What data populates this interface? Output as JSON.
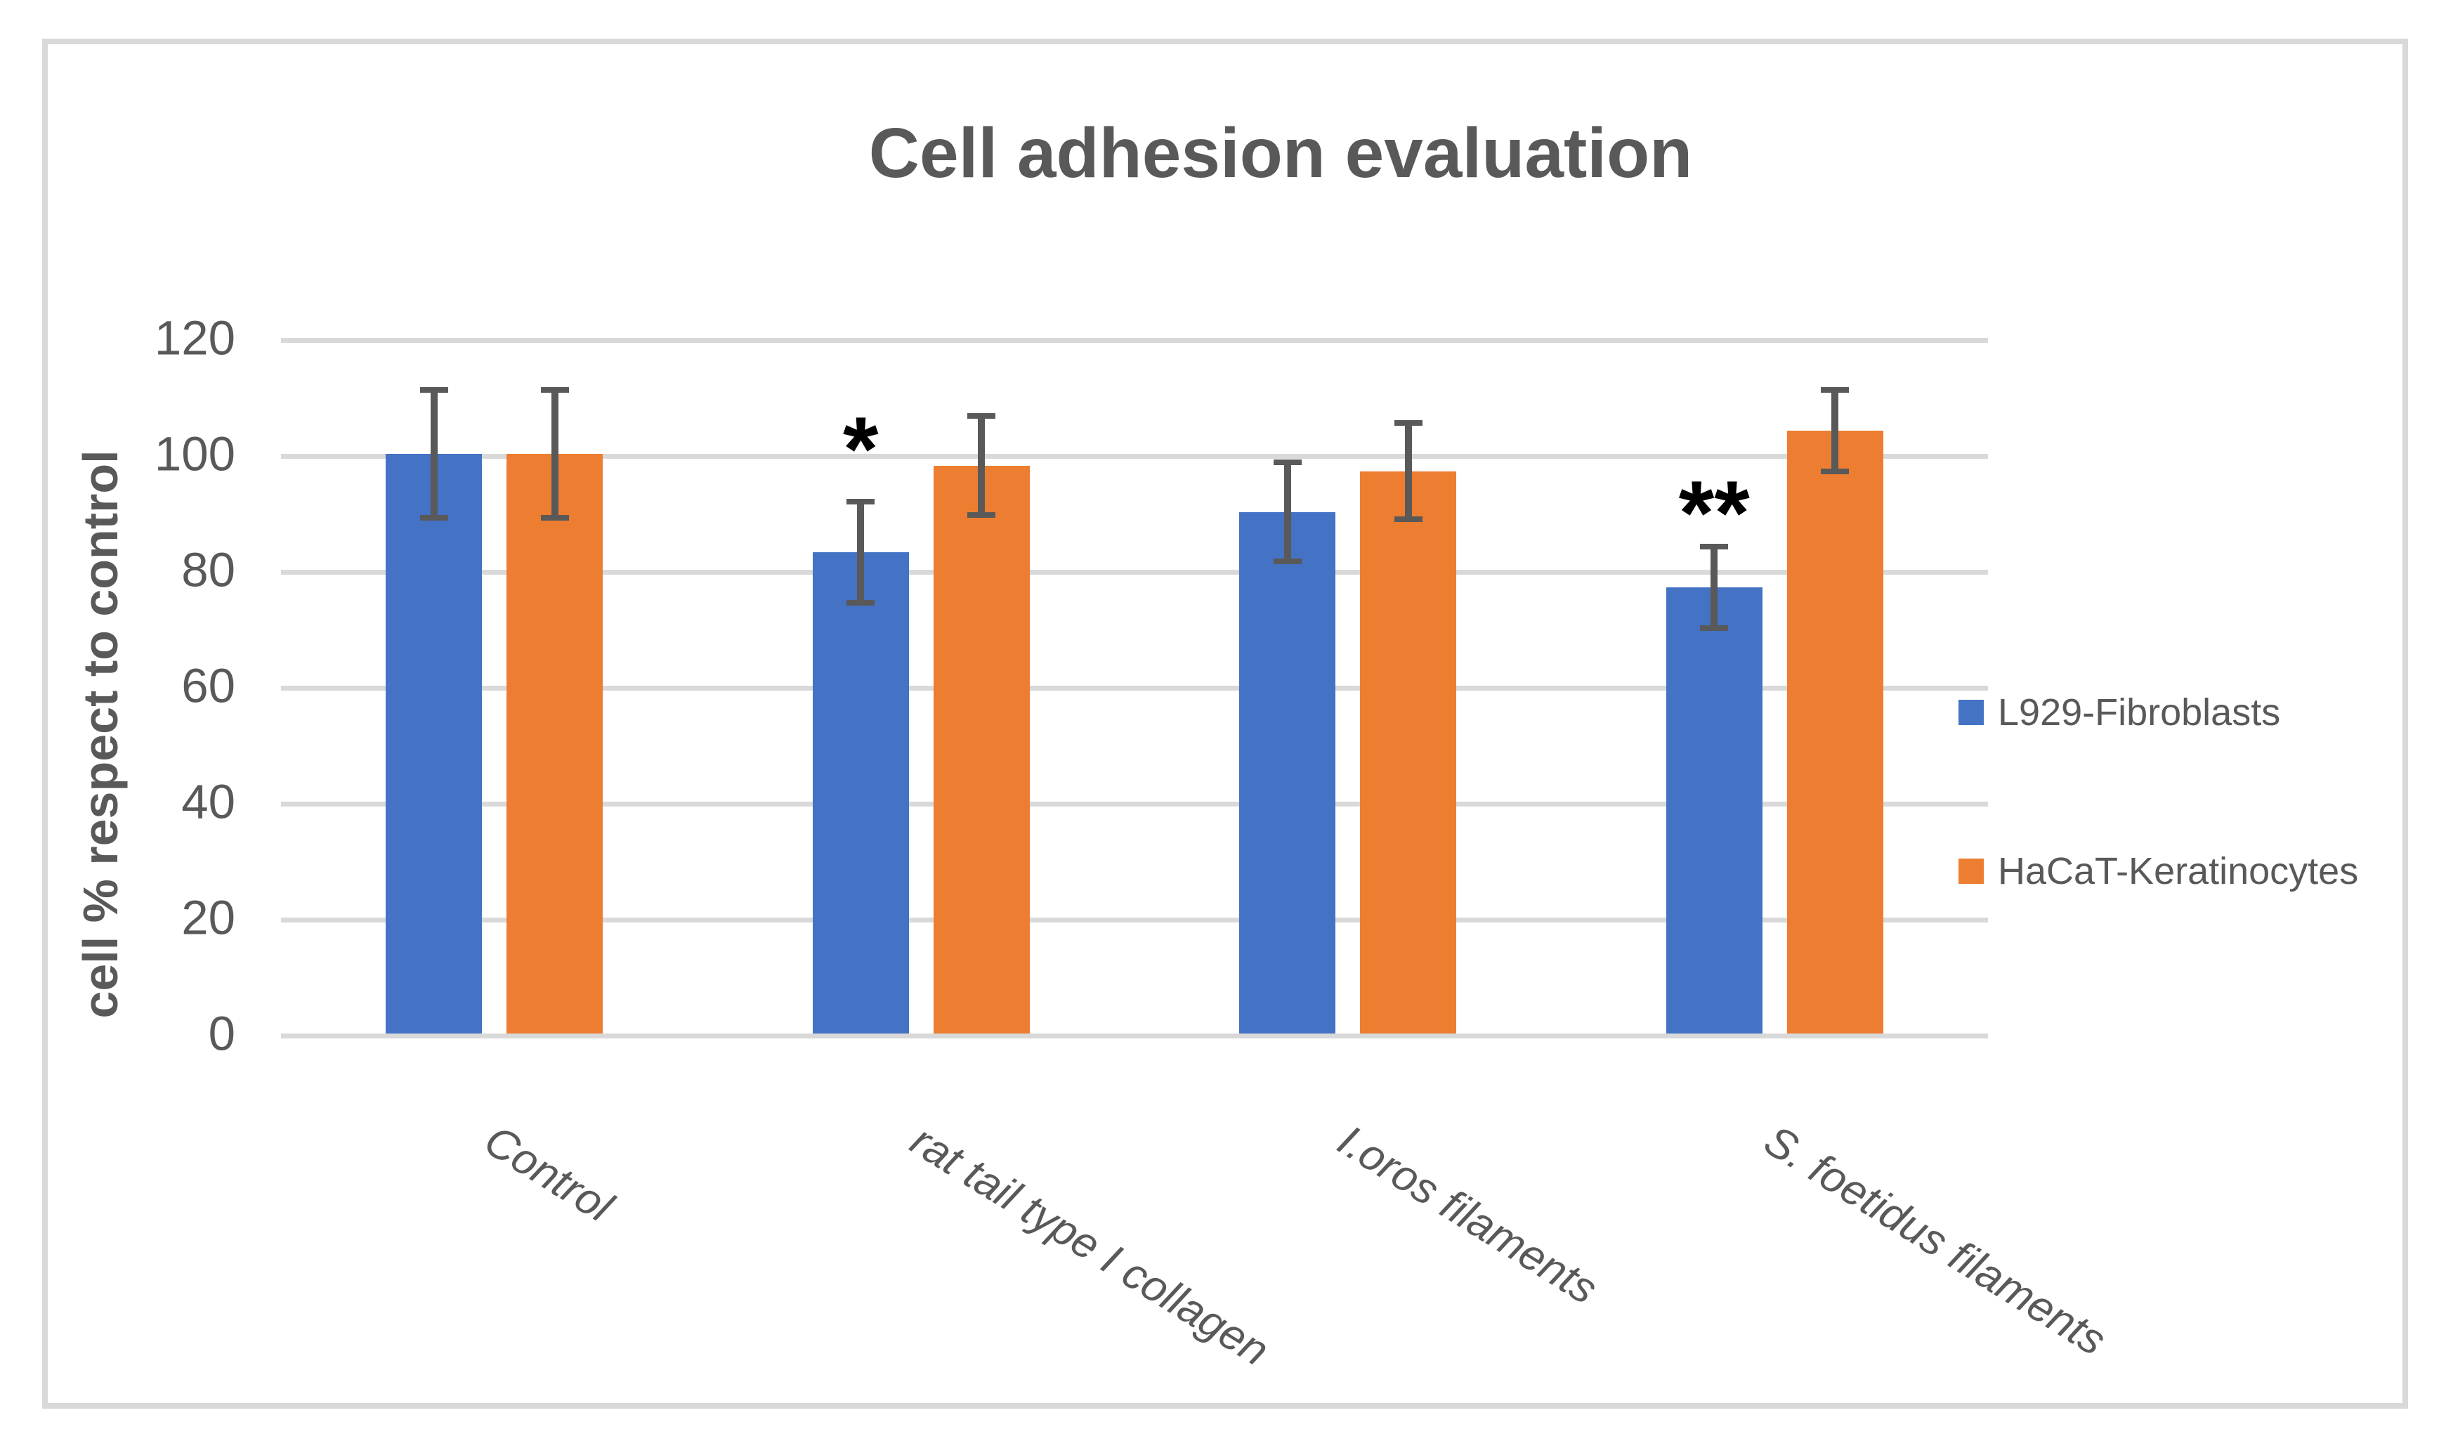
{
  "chart_data": {
    "type": "bar",
    "title": "Cell adhesion evaluation",
    "ylabel": "cell % respect to control",
    "xlabel": "",
    "ylim": [
      0,
      120
    ],
    "ytick_step": 20,
    "grid": true,
    "legend_position": "right",
    "categories": [
      "Control",
      "rat tail type I collagen",
      "I.oros filaments",
      "S. foetidus filaments"
    ],
    "series": [
      {
        "name": "L929-Fibroblasts",
        "color": "#4472C4",
        "values": [
          100,
          83,
          90,
          77
        ],
        "errors": [
          11,
          8.7,
          8.5,
          7
        ]
      },
      {
        "name": "HaCaT-Keratinocytes",
        "color": "#ED7D31",
        "values": [
          100,
          98,
          97,
          104
        ],
        "errors": [
          11,
          8.6,
          8.3,
          7
        ]
      }
    ],
    "annotations": [
      {
        "text": "*",
        "category_index": 1,
        "series_index": 0,
        "y_value": 105
      },
      {
        "text": "**",
        "category_index": 3,
        "series_index": 0,
        "y_value": 94
      }
    ]
  },
  "colors": {
    "background": "#FFFFFF",
    "border": "#D9D9D9",
    "gridline": "#D9D9D9",
    "text": "#595959",
    "error_bar": "#595959",
    "annotation": "#000000"
  }
}
